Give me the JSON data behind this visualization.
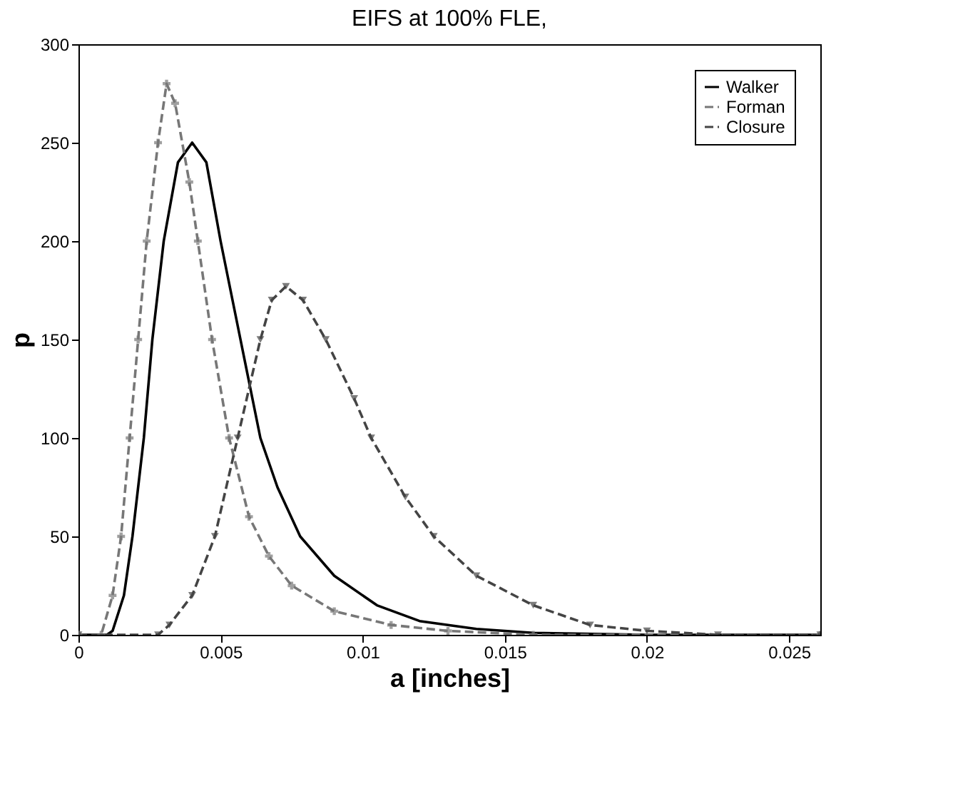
{
  "chart_data": {
    "type": "line",
    "title": "EIFS at 100% FLE,",
    "xlabel": "a [inches]",
    "ylabel": "p",
    "xlim": [
      0,
      0.0261
    ],
    "xticks": [
      0,
      0.005,
      0.01,
      0.015,
      0.02,
      0.025
    ],
    "ylim": [
      0,
      300
    ],
    "yticks": [
      0,
      50,
      100,
      150,
      200,
      250,
      300
    ],
    "grid": false,
    "legend": "top right",
    "series": [
      {
        "name": "Walker",
        "color": "#000000",
        "line_style": "solid",
        "marker": "none",
        "x": [
          0,
          0.001,
          0.0012,
          0.0016,
          0.0019,
          0.0023,
          0.0026,
          0.003,
          0.0035,
          0.004,
          0.0045,
          0.005,
          0.0057,
          0.0064,
          0.007,
          0.0078,
          0.009,
          0.0105,
          0.012,
          0.014,
          0.016,
          0.02,
          0.0261
        ],
        "values": [
          0,
          0,
          2,
          20,
          50,
          100,
          150,
          200,
          240,
          250,
          240,
          200,
          150,
          100,
          75,
          50,
          30,
          15,
          7,
          3,
          1,
          0,
          0
        ]
      },
      {
        "name": "Forman",
        "color": "#777777",
        "line_style": "dashed",
        "marker": "cross",
        "x": [
          0,
          0.0008,
          0.0012,
          0.0015,
          0.0018,
          0.0021,
          0.0024,
          0.0028,
          0.0031,
          0.0034,
          0.0039,
          0.0042,
          0.0047,
          0.0053,
          0.006,
          0.0067,
          0.0075,
          0.009,
          0.011,
          0.013,
          0.016,
          0.0261
        ],
        "values": [
          0,
          0,
          20,
          50,
          100,
          150,
          200,
          250,
          280,
          270,
          230,
          200,
          150,
          100,
          60,
          40,
          25,
          12,
          5,
          2,
          0,
          0
        ]
      },
      {
        "name": "Closure",
        "color": "#444444",
        "line_style": "dashed",
        "marker": "triangle",
        "x": [
          0,
          0.0028,
          0.0032,
          0.004,
          0.0048,
          0.0056,
          0.0064,
          0.0068,
          0.0073,
          0.0079,
          0.0087,
          0.0097,
          0.0103,
          0.0115,
          0.0125,
          0.014,
          0.016,
          0.018,
          0.02,
          0.0225,
          0.0261
        ],
        "values": [
          0,
          0,
          5,
          20,
          50,
          100,
          150,
          170,
          177,
          170,
          150,
          120,
          100,
          70,
          50,
          30,
          15,
          5,
          2,
          0,
          0
        ]
      }
    ]
  }
}
